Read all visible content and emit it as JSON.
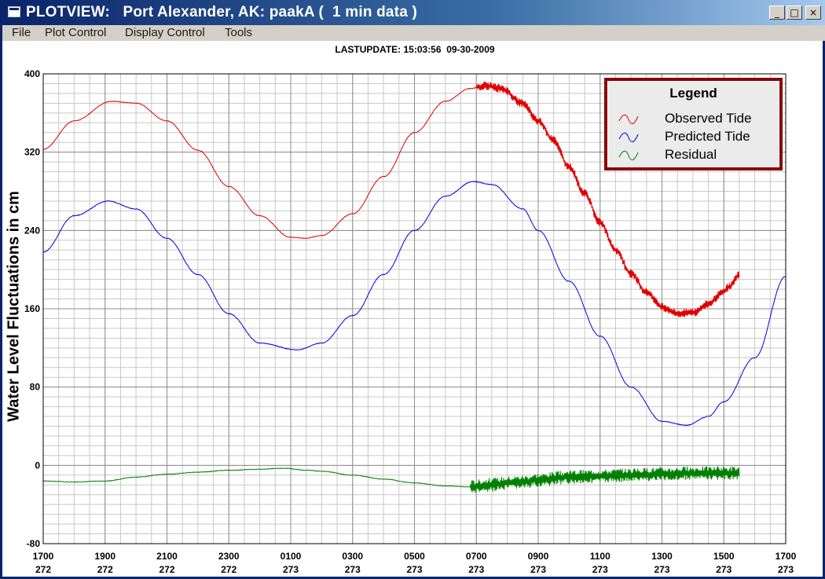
{
  "window": {
    "title": "PLOTVIEW:   Port Alexander, AK: paakA (  1 min data )",
    "icon": "app-window-icon",
    "controls": {
      "minimize": "_",
      "maximize": "□",
      "close": "×"
    }
  },
  "menu": {
    "items": [
      "File",
      "Plot Control",
      "Display Control",
      "Tools"
    ]
  },
  "last_update": "LASTUPDATE: 15:03:56  09-30-2009",
  "legend": {
    "title": "Legend",
    "items": [
      {
        "label": "Observed Tide",
        "color": "#e00000"
      },
      {
        "label": "Predicted Tide",
        "color": "#0000e0"
      },
      {
        "label": "Residual",
        "color": "#008000"
      }
    ]
  },
  "chart_data": {
    "type": "line",
    "ylabel": "Water Level Fluctuations in cm",
    "ylim": [
      -80,
      400
    ],
    "yticks": [
      -80,
      0,
      80,
      160,
      240,
      320,
      400
    ],
    "xlim_hours": [
      17,
      41
    ],
    "xticks": [
      {
        "hour": 17,
        "time": "1700",
        "day": "272"
      },
      {
        "hour": 19,
        "time": "1900",
        "day": "272"
      },
      {
        "hour": 21,
        "time": "2100",
        "day": "272"
      },
      {
        "hour": 23,
        "time": "2300",
        "day": "272"
      },
      {
        "hour": 25,
        "time": "0100",
        "day": "273"
      },
      {
        "hour": 27,
        "time": "0300",
        "day": "273"
      },
      {
        "hour": 29,
        "time": "0500",
        "day": "273"
      },
      {
        "hour": 31,
        "time": "0700",
        "day": "273"
      },
      {
        "hour": 33,
        "time": "0900",
        "day": "273"
      },
      {
        "hour": 35,
        "time": "1100",
        "day": "273"
      },
      {
        "hour": 37,
        "time": "1300",
        "day": "273"
      },
      {
        "hour": 39,
        "time": "1500",
        "day": "273"
      },
      {
        "hour": 41,
        "time": "1700",
        "day": "273"
      }
    ],
    "grid": true,
    "legend_position": "top-right",
    "series": [
      {
        "name": "Observed Tide",
        "color": "#e00000",
        "noisy_from_hour": 31.0,
        "points": [
          [
            17,
            323
          ],
          [
            18,
            352
          ],
          [
            19.2,
            372
          ],
          [
            20,
            370
          ],
          [
            21,
            352
          ],
          [
            22,
            322
          ],
          [
            23,
            285
          ],
          [
            24,
            255
          ],
          [
            25,
            233
          ],
          [
            25.5,
            232
          ],
          [
            26,
            235
          ],
          [
            27,
            257
          ],
          [
            28,
            295
          ],
          [
            29,
            340
          ],
          [
            30,
            372
          ],
          [
            30.8,
            385
          ],
          [
            31.3,
            388
          ],
          [
            31.8,
            385
          ],
          [
            32.5,
            370
          ],
          [
            33,
            352
          ],
          [
            33.5,
            332
          ],
          [
            34,
            305
          ],
          [
            34.5,
            278
          ],
          [
            35,
            248
          ],
          [
            35.5,
            220
          ],
          [
            36,
            196
          ],
          [
            36.5,
            177
          ],
          [
            37,
            162
          ],
          [
            37.5,
            155
          ],
          [
            38,
            156
          ],
          [
            38.5,
            165
          ],
          [
            39,
            178
          ],
          [
            39.2,
            183
          ],
          [
            39.5,
            195
          ]
        ]
      },
      {
        "name": "Predicted Tide",
        "color": "#0000e0",
        "points": [
          [
            17,
            218
          ],
          [
            18,
            255
          ],
          [
            19.1,
            270
          ],
          [
            20,
            262
          ],
          [
            21,
            232
          ],
          [
            22,
            195
          ],
          [
            23,
            155
          ],
          [
            24,
            125
          ],
          [
            25.2,
            118
          ],
          [
            26,
            125
          ],
          [
            27,
            153
          ],
          [
            28,
            195
          ],
          [
            29,
            240
          ],
          [
            30,
            275
          ],
          [
            30.9,
            290
          ],
          [
            31.5,
            287
          ],
          [
            32.5,
            262
          ],
          [
            33,
            240
          ],
          [
            34,
            188
          ],
          [
            35,
            132
          ],
          [
            36,
            80
          ],
          [
            37,
            45
          ],
          [
            37.8,
            41
          ],
          [
            38.5,
            50
          ],
          [
            39,
            65
          ],
          [
            40,
            110
          ],
          [
            41,
            193
          ]
        ]
      },
      {
        "name": "Residual",
        "color": "#008000",
        "noisy_from_hour": 30.8,
        "points": [
          [
            17,
            -16
          ],
          [
            18,
            -17
          ],
          [
            19,
            -16
          ],
          [
            20,
            -12
          ],
          [
            21,
            -9
          ],
          [
            22,
            -7
          ],
          [
            23,
            -5
          ],
          [
            24,
            -4
          ],
          [
            24.8,
            -3
          ],
          [
            25.5,
            -5
          ],
          [
            26,
            -6
          ],
          [
            27,
            -10
          ],
          [
            28,
            -14
          ],
          [
            29,
            -18
          ],
          [
            30,
            -21
          ],
          [
            30.8,
            -22
          ],
          [
            31.5,
            -20
          ],
          [
            32,
            -18
          ],
          [
            32.5,
            -17
          ],
          [
            33,
            -15
          ],
          [
            34,
            -12
          ],
          [
            35,
            -11
          ],
          [
            36,
            -10
          ],
          [
            37,
            -9
          ],
          [
            38,
            -8
          ],
          [
            39,
            -8
          ],
          [
            39.5,
            -8
          ]
        ]
      }
    ]
  }
}
